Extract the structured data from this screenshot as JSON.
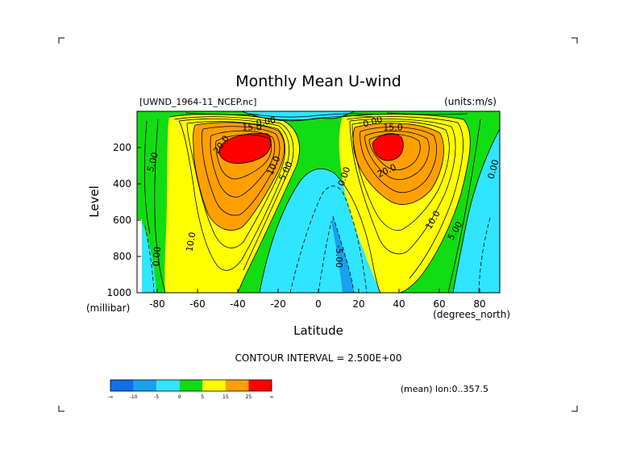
{
  "chart_data": {
    "type": "contour",
    "title": "Monthly Mean U-wind",
    "subtitle_left": "[UWND_1964-11_NCEP.nc]",
    "subtitle_right": "(units:m/s)",
    "xlabel": "Latitude",
    "xunits": "(degrees_north)",
    "ylabel": "Level",
    "yunits": "(millibar)",
    "xlim": [
      -90,
      90
    ],
    "ylim": [
      1000,
      0
    ],
    "x_ticks": [
      "-80",
      "-60",
      "-40",
      "-20",
      "0",
      "20",
      "40",
      "60",
      "80"
    ],
    "x_tick_values": [
      -80,
      -60,
      -40,
      -20,
      0,
      20,
      40,
      60,
      80
    ],
    "y_ticks": [
      "200",
      "400",
      "600",
      "800",
      "1000"
    ],
    "y_tick_values": [
      200,
      400,
      600,
      800,
      1000
    ],
    "contour_interval_text": "CONTOUR INTERVAL = 2.500E+00",
    "contour_interval": 2.5,
    "footer_note": "(mean) lon:0..357.5",
    "jets": [
      {
        "lat": -33,
        "level": 200,
        "max": 25
      },
      {
        "lat": 33,
        "level": 200,
        "max": 25
      }
    ],
    "contour_labels": [
      {
        "text": "5.00",
        "lat": -82,
        "level": 280,
        "rot": -75
      },
      {
        "text": "20.0",
        "lat": -48,
        "level": 185,
        "rot": -55
      },
      {
        "text": "10.0",
        "lat": -22,
        "level": 300,
        "rot": -65
      },
      {
        "text": "5.00",
        "lat": -16,
        "level": 330,
        "rot": -65
      },
      {
        "text": "15.0",
        "lat": -33,
        "level": 90,
        "rot": 0
      },
      {
        "text": "10.0",
        "lat": -63,
        "level": 720,
        "rot": -80
      },
      {
        "text": "0.00",
        "lat": -80,
        "level": 800,
        "rot": -85
      },
      {
        "text": "0.00",
        "lat": -26,
        "level": 60,
        "rot": -10
      },
      {
        "text": "0.00",
        "lat": 13,
        "level": 360,
        "rot": -70
      },
      {
        "text": "-5.00",
        "lat": 10,
        "level": 800,
        "rot": 90
      },
      {
        "text": "0.00",
        "lat": 27,
        "level": 60,
        "rot": -15
      },
      {
        "text": "15.0",
        "lat": 37,
        "level": 90,
        "rot": 0
      },
      {
        "text": "20.0",
        "lat": 34,
        "level": 330,
        "rot": -25
      },
      {
        "text": "10.0",
        "lat": 57,
        "level": 600,
        "rot": -60
      },
      {
        "text": "5.00",
        "lat": 68,
        "level": 660,
        "rot": -60
      },
      {
        "text": "0.00",
        "lat": 87,
        "level": 320,
        "rot": -75
      }
    ],
    "colorbar": {
      "colors": [
        "#0f6ff0",
        "#19a0f0",
        "#30e5ff",
        "#12dc12",
        "#ffff00",
        "#ffa000",
        "#ff0000"
      ],
      "labels": [
        "-∞",
        "-10",
        "-5",
        "0",
        "5",
        "15",
        "25",
        "∞"
      ]
    }
  }
}
